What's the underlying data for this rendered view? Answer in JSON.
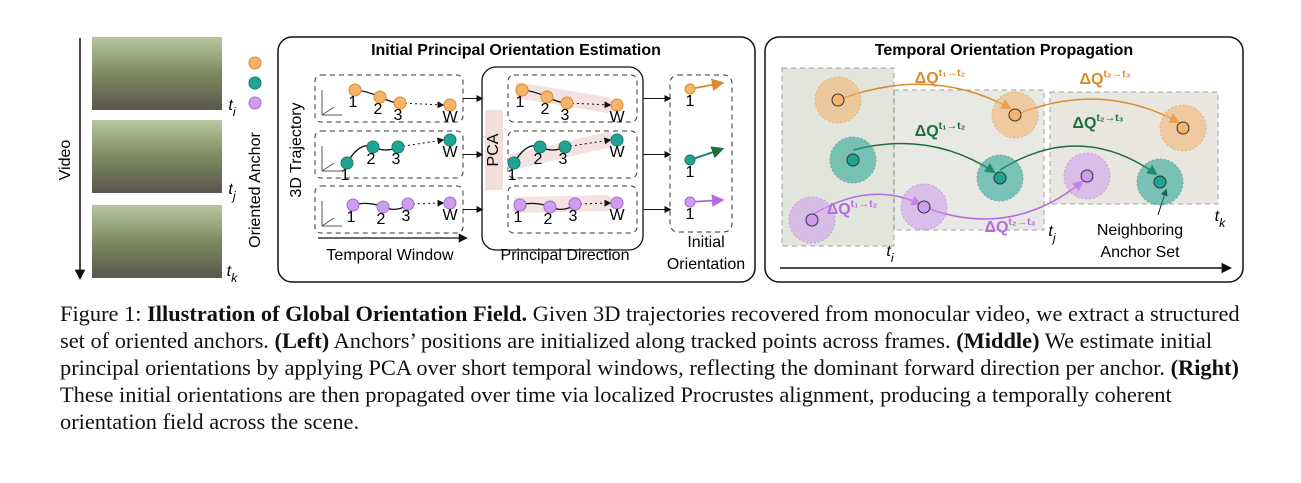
{
  "figure": {
    "left": {
      "side_label": "Video",
      "frame_labels": [
        {
          "base": "t",
          "sub": "i"
        },
        {
          "base": "t",
          "sub": "j"
        },
        {
          "base": "t",
          "sub": "k"
        }
      ],
      "legend_label": "Oriented Anchor"
    },
    "middle": {
      "title": "Initial Principal Orientation Estimation",
      "y_label": "3D Trajectory",
      "pca_label": "PCA",
      "rows": [
        {
          "trajectory_points": [
            "1",
            "2",
            "3",
            "W"
          ],
          "pca_points": [
            "1",
            "2",
            "3",
            "W"
          ],
          "orientation_point": "1"
        },
        {
          "trajectory_points": [
            "1",
            "2",
            "3",
            "W"
          ],
          "pca_points": [
            "1",
            "2",
            "3",
            "W"
          ],
          "orientation_point": "1"
        },
        {
          "trajectory_points": [
            "1",
            "2",
            "3",
            "W"
          ],
          "pca_points": [
            "1",
            "2",
            "3",
            "W"
          ],
          "orientation_point": "1"
        }
      ],
      "column_labels": [
        "Temporal Window",
        "Principal Direction",
        [
          "Initial",
          "Orientation"
        ]
      ]
    },
    "right": {
      "title": "Temporal Orientation Propagation",
      "deltas": [
        {
          "base": "ΔQ",
          "sup": "t₁→t₂"
        },
        {
          "base": "ΔQ",
          "sup": "t₂→t₃"
        },
        {
          "base": "ΔQ",
          "sup": "t₁→t₂"
        },
        {
          "base": "ΔQ",
          "sup": "t₂→t₃"
        },
        {
          "base": "ΔQ",
          "sup": "t₁→t₂"
        },
        {
          "base": "ΔQ",
          "sup": "t₂→t₃"
        }
      ],
      "time_labels": [
        {
          "base": "t",
          "sub": "i"
        },
        {
          "base": "t",
          "sub": "j"
        },
        {
          "base": "t",
          "sub": "k"
        }
      ],
      "annotation": [
        "Neighboring",
        "Anchor Set"
      ]
    }
  },
  "caption": [
    {
      "text": "Figure 1: ",
      "bold": false
    },
    {
      "text": "Illustration of Global Orientation Field.",
      "bold": true
    },
    {
      "text": " Given 3D trajectories recovered from monocular video, we extract a structured set of oriented anchors. ",
      "bold": false
    },
    {
      "text": "(Left)",
      "bold": true
    },
    {
      "text": " Anchors’ positions are initialized along tracked points across frames. ",
      "bold": false
    },
    {
      "text": "(Middle)",
      "bold": true
    },
    {
      "text": " We estimate initial principal orientations by applying PCA over short temporal windows, reflecting the dominant forward direction per anchor. ",
      "bold": false
    },
    {
      "text": "(Right)",
      "bold": true
    },
    {
      "text": " These initial orientations are then propagated over time via localized Procrustes alignment, producing a temporally coherent orientation field across the scene.",
      "bold": false
    }
  ]
}
